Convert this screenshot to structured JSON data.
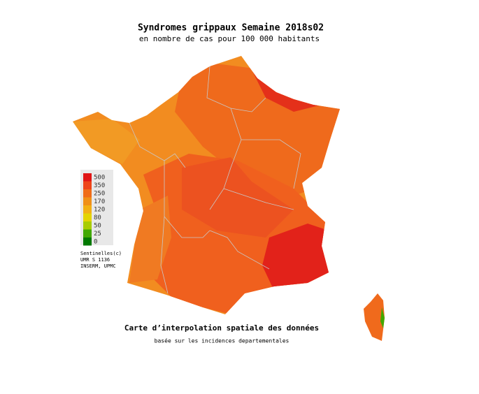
{
  "title": "Syndromes grippaux Semaine 2018s02",
  "subtitle": "en nombre de cas pour 100 000 habitants",
  "legend": {
    "items": [
      {
        "value": 500,
        "color": "#e01414"
      },
      {
        "value": 350,
        "color": "#ee4418"
      },
      {
        "value": 250,
        "color": "#f06c18"
      },
      {
        "value": 170,
        "color": "#f09018"
      },
      {
        "value": 120,
        "color": "#f2b014"
      },
      {
        "value": 80,
        "color": "#e4d400"
      },
      {
        "value": 50,
        "color": "#a8cc00"
      },
      {
        "value": 25,
        "color": "#40a800"
      },
      {
        "value": 0,
        "color": "#007800"
      }
    ]
  },
  "credits": [
    "Sentinelles(c)",
    "UMR S 1136",
    "INSERM, UPMC"
  ],
  "footer": {
    "title": "Carte d’interpolation spatiale des données",
    "subtitle": "basée sur les incidences departementales"
  }
}
